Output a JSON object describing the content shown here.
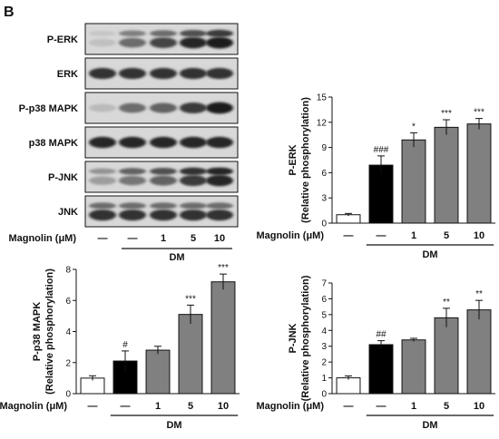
{
  "panel_letter": "B",
  "blot": {
    "rows": [
      {
        "label": "P-ERK",
        "bands": [
          0.12,
          0.55,
          0.75,
          0.9,
          0.95
        ],
        "second": [
          0.1,
          0.45,
          0.55,
          0.7,
          0.8
        ]
      },
      {
        "label": "ERK",
        "bands": [
          0.85,
          0.85,
          0.85,
          0.85,
          0.85
        ],
        "second": [
          0.0,
          0.0,
          0.0,
          0.0,
          0.0
        ]
      },
      {
        "label": "P-p38 MAPK",
        "bands": [
          0.15,
          0.55,
          0.6,
          0.8,
          0.95
        ],
        "second": [
          0.0,
          0.0,
          0.0,
          0.0,
          0.0
        ]
      },
      {
        "label": "p38 MAPK",
        "bands": [
          0.9,
          0.9,
          0.9,
          0.9,
          0.9
        ],
        "second": [
          0.0,
          0.0,
          0.0,
          0.0,
          0.0
        ]
      },
      {
        "label": "P-JNK",
        "bands": [
          0.3,
          0.5,
          0.6,
          0.8,
          0.9
        ],
        "second": [
          0.35,
          0.6,
          0.7,
          0.85,
          0.9
        ]
      },
      {
        "label": "JNK",
        "bands": [
          0.85,
          0.85,
          0.85,
          0.85,
          0.85
        ],
        "second": [
          0.55,
          0.55,
          0.55,
          0.55,
          0.55
        ]
      }
    ],
    "treatment_label": "Magnolin (μM)",
    "lane_labels": [
      "—",
      "—",
      "1",
      "5",
      "10"
    ],
    "group_label": "DM"
  },
  "chart_data": [
    {
      "type": "bar",
      "ylabel_line1": "P-ERK",
      "ylabel_line2": "(Relative phosphorylation)",
      "ylim": [
        0,
        15
      ],
      "yticks": [
        0,
        3,
        6,
        9,
        12,
        15
      ],
      "categories": [
        "—",
        "—",
        "1",
        "5",
        "10"
      ],
      "values": [
        1.0,
        6.9,
        9.9,
        11.4,
        11.8
      ],
      "errors": [
        0.15,
        1.1,
        0.85,
        0.9,
        0.65
      ],
      "annotations": [
        "",
        "###",
        "*",
        "***",
        "***"
      ],
      "bar_colors": [
        "#ffffff",
        "#000000",
        "#808080",
        "#808080",
        "#808080"
      ],
      "xlabel": "Magnolin (μM)",
      "group_label": "DM"
    },
    {
      "type": "bar",
      "ylabel_line1": "P-p38 MAPK",
      "ylabel_line2": "(Relative phosphorylation)",
      "ylim": [
        0,
        8
      ],
      "yticks": [
        0,
        2,
        4,
        6,
        8
      ],
      "categories": [
        "—",
        "—",
        "1",
        "5",
        "10"
      ],
      "values": [
        1.0,
        2.1,
        2.8,
        5.1,
        7.2
      ],
      "errors": [
        0.15,
        0.65,
        0.25,
        0.6,
        0.5
      ],
      "annotations": [
        "",
        "#",
        "",
        "***",
        "***"
      ],
      "bar_colors": [
        "#ffffff",
        "#000000",
        "#808080",
        "#808080",
        "#808080"
      ],
      "xlabel": "Magnolin (μM)",
      "group_label": "DM"
    },
    {
      "type": "bar",
      "ylabel_line1": "P-JNK",
      "ylabel_line2": "(Relative phosphorylation)",
      "ylim": [
        0,
        7
      ],
      "yticks": [
        0,
        1,
        2,
        3,
        4,
        5,
        6,
        7
      ],
      "categories": [
        "—",
        "—",
        "1",
        "5",
        "10"
      ],
      "values": [
        1.0,
        3.1,
        3.4,
        4.8,
        5.3
      ],
      "errors": [
        0.12,
        0.25,
        0.1,
        0.6,
        0.6
      ],
      "annotations": [
        "",
        "##",
        "",
        "**",
        "**"
      ],
      "bar_colors": [
        "#ffffff",
        "#000000",
        "#808080",
        "#808080",
        "#808080"
      ],
      "xlabel": "Magnolin (μM)",
      "group_label": "DM"
    }
  ]
}
